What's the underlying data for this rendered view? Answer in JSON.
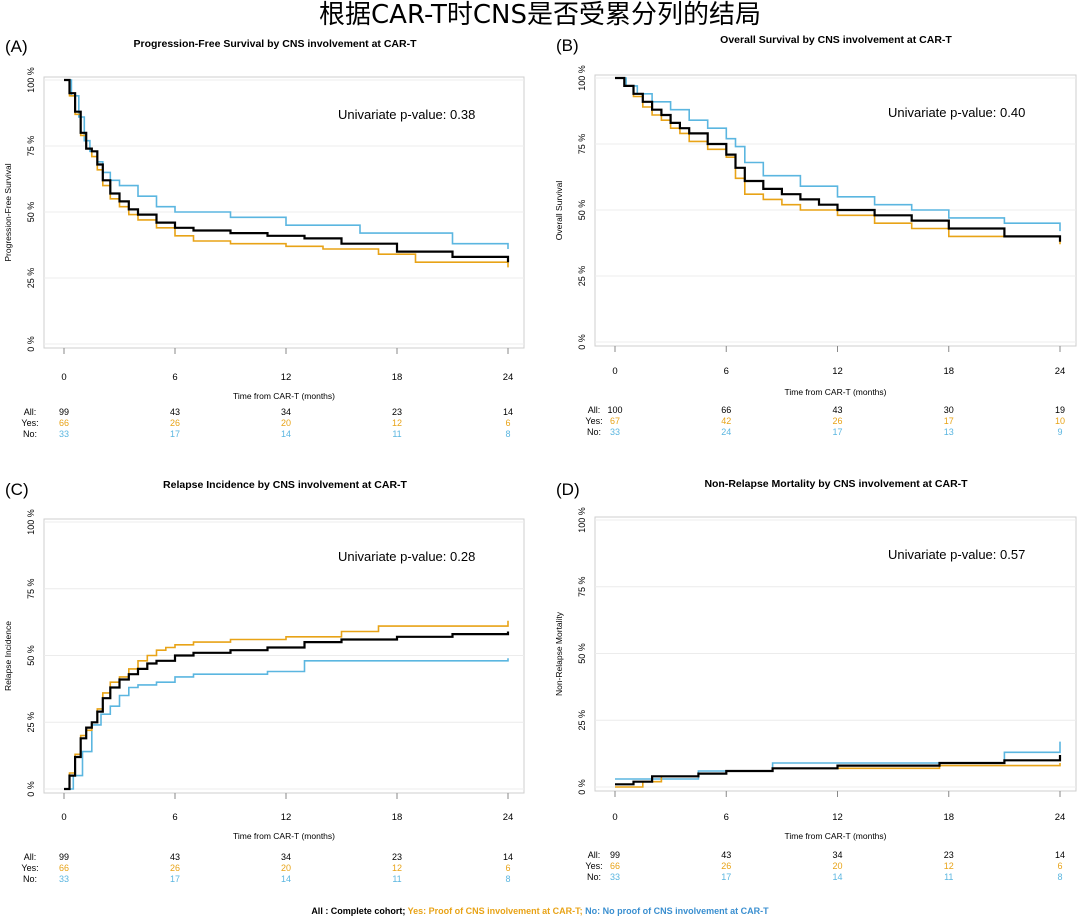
{
  "title": "根据CAR-T时CNS是否受累分列的结局",
  "colors": {
    "all": "#000000",
    "yes": "#e8a317",
    "no": "#5bb6e0"
  },
  "footer": {
    "all": "All : Complete cohort;",
    "yes": " Yes: Proof of CNS involvement at CAR-T;",
    "no": " No: No proof of CNS involvement at CAR-T"
  },
  "chart_data": [
    {
      "type": "line",
      "panel": "(A)",
      "title": "Progression-Free Survival by CNS involvement at CAR-T",
      "xlabel": "Time from CAR-T (months)",
      "ylabel": "Progression-Free Survival",
      "xlim": [
        0,
        24
      ],
      "ylim": [
        0,
        100
      ],
      "xticks": [
        "0",
        "6",
        "12",
        "18",
        "24"
      ],
      "yticks": [
        "0 %",
        "25 %",
        "50 %",
        "75 %",
        "100 %"
      ],
      "annotation": "Univariate p-value: 0.38",
      "series": [
        {
          "name": "All",
          "key": "all",
          "x": [
            0,
            0.3,
            0.6,
            0.9,
            1.2,
            1.5,
            1.8,
            2.1,
            2.5,
            3.0,
            3.5,
            4.0,
            5.0,
            6.0,
            7.0,
            9.0,
            11.0,
            13.0,
            15.0,
            18.0,
            21.0,
            24.0
          ],
          "y": [
            100,
            95,
            88,
            80,
            74,
            73,
            68,
            62,
            57,
            54,
            51,
            49,
            46,
            44,
            43,
            42,
            41,
            40,
            38,
            35,
            33,
            31
          ]
        },
        {
          "name": "Yes",
          "key": "yes",
          "x": [
            0,
            0.3,
            0.6,
            0.9,
            1.2,
            1.5,
            1.8,
            2.1,
            2.5,
            3.0,
            3.5,
            4.0,
            5.0,
            6.0,
            7.0,
            9.0,
            12.0,
            14.0,
            17.0,
            19.0,
            24.0
          ],
          "y": [
            100,
            94,
            87,
            79,
            74,
            71,
            66,
            60,
            55,
            52,
            49,
            47,
            44,
            41,
            39,
            38,
            37,
            36,
            34,
            31,
            29
          ]
        },
        {
          "name": "No",
          "key": "no",
          "x": [
            0,
            0.4,
            0.8,
            1.1,
            1.4,
            1.8,
            2.1,
            2.5,
            3.0,
            4.0,
            5.0,
            6.0,
            9.0,
            12.0,
            16.0,
            21.0,
            24.0
          ],
          "y": [
            100,
            94,
            86,
            77,
            73,
            69,
            65,
            62,
            60,
            56,
            52,
            50,
            48,
            45,
            42,
            38,
            36
          ]
        }
      ],
      "risk_table": {
        "times": [
          0,
          6,
          12,
          18,
          24
        ],
        "rows": [
          {
            "label": "All:",
            "key": "all",
            "values": [
              "99",
              "43",
              "34",
              "23",
              "14"
            ]
          },
          {
            "label": "Yes:",
            "key": "yes",
            "values": [
              "66",
              "26",
              "20",
              "12",
              "6"
            ]
          },
          {
            "label": "No:",
            "key": "no",
            "values": [
              "33",
              "17",
              "14",
              "11",
              "8"
            ]
          }
        ]
      }
    },
    {
      "type": "line",
      "panel": "(B)",
      "title": "Overall Survival by CNS involvement at CAR-T",
      "xlabel": "Time from CAR-T (months)",
      "ylabel": "Overall Survival",
      "xlim": [
        0,
        24
      ],
      "ylim": [
        0,
        100
      ],
      "xticks": [
        "0",
        "6",
        "12",
        "18",
        "24"
      ],
      "yticks": [
        "0 %",
        "25 %",
        "50 %",
        "75 %",
        "100 %"
      ],
      "annotation": "Univariate p-value: 0.40",
      "series": [
        {
          "name": "All",
          "key": "all",
          "x": [
            0,
            0.5,
            1.0,
            1.5,
            2.0,
            2.5,
            3.0,
            3.5,
            4.0,
            5.0,
            6.0,
            6.5,
            7.0,
            8.0,
            9.0,
            10.0,
            11.0,
            12.0,
            14.0,
            16.0,
            18.0,
            21.0,
            24.0
          ],
          "y": [
            100,
            97,
            94,
            91,
            88,
            86,
            83,
            81,
            79,
            75,
            71,
            66,
            61,
            58,
            56,
            54,
            52,
            50,
            48,
            46,
            43,
            40,
            38
          ]
        },
        {
          "name": "Yes",
          "key": "yes",
          "x": [
            0,
            0.5,
            1.0,
            1.5,
            2.0,
            2.5,
            3.0,
            3.5,
            4.0,
            5.0,
            6.0,
            6.5,
            7.0,
            8.0,
            9.0,
            10.0,
            12.0,
            14.0,
            16.0,
            18.0,
            24.0
          ],
          "y": [
            100,
            97,
            93,
            89,
            86,
            84,
            81,
            79,
            76,
            73,
            70,
            62,
            56,
            54,
            52,
            50,
            48,
            45,
            43,
            40,
            37
          ]
        },
        {
          "name": "No",
          "key": "no",
          "x": [
            0,
            0.6,
            1.2,
            2.0,
            3.0,
            4.0,
            5.0,
            6.0,
            6.5,
            7.0,
            8.0,
            10.0,
            12.0,
            14.0,
            16.0,
            18.0,
            21.0,
            24.0
          ],
          "y": [
            100,
            97,
            94,
            91,
            88,
            84,
            81,
            77,
            74,
            68,
            63,
            59,
            55,
            52,
            50,
            47,
            45,
            42
          ]
        }
      ],
      "risk_table": {
        "times": [
          0,
          6,
          12,
          18,
          24
        ],
        "rows": [
          {
            "label": "All:",
            "key": "all",
            "values": [
              "100",
              "66",
              "43",
              "30",
              "19"
            ]
          },
          {
            "label": "Yes:",
            "key": "yes",
            "values": [
              "67",
              "42",
              "26",
              "17",
              "10"
            ]
          },
          {
            "label": "No:",
            "key": "no",
            "values": [
              "33",
              "24",
              "17",
              "13",
              "9"
            ]
          }
        ]
      }
    },
    {
      "type": "line",
      "panel": "(C)",
      "title": "Relapse Incidence by CNS involvement at CAR-T",
      "xlabel": "Time from CAR-T (months)",
      "ylabel": "Relapse Incidence",
      "xlim": [
        0,
        24
      ],
      "ylim": [
        0,
        100
      ],
      "xticks": [
        "0",
        "6",
        "12",
        "18",
        "24"
      ],
      "yticks": [
        "0 %",
        "25 %",
        "50 %",
        "75 %",
        "100 %"
      ],
      "annotation": "Univariate p-value: 0.28",
      "series": [
        {
          "name": "All",
          "key": "all",
          "x": [
            0,
            0.3,
            0.6,
            0.9,
            1.2,
            1.5,
            1.8,
            2.1,
            2.5,
            3.0,
            3.5,
            4.0,
            4.5,
            5.0,
            6.0,
            7.0,
            9.0,
            11.0,
            13.0,
            15.0,
            18.0,
            21.0,
            24.0
          ],
          "y": [
            0,
            5,
            12,
            19,
            23,
            25,
            29,
            34,
            38,
            41,
            43,
            45,
            47,
            48,
            50,
            51,
            52,
            53,
            55,
            56,
            57,
            58,
            59
          ]
        },
        {
          "name": "Yes",
          "key": "yes",
          "x": [
            0,
            0.3,
            0.6,
            0.9,
            1.2,
            1.5,
            1.8,
            2.1,
            2.5,
            3.0,
            3.5,
            4.0,
            4.5,
            5.0,
            5.5,
            6.0,
            7.0,
            9.0,
            12.0,
            15.0,
            17.0,
            24.0
          ],
          "y": [
            0,
            6,
            13,
            20,
            22,
            25,
            30,
            36,
            40,
            42,
            45,
            48,
            50,
            52,
            53,
            54,
            55,
            56,
            57,
            59,
            61,
            63
          ]
        },
        {
          "name": "No",
          "key": "no",
          "x": [
            0,
            0.5,
            1.0,
            1.5,
            2.0,
            2.5,
            3.0,
            3.5,
            4.0,
            5.0,
            6.0,
            7.0,
            9.0,
            11.0,
            13.0,
            24.0
          ],
          "y": [
            0,
            5,
            14,
            24,
            28,
            31,
            35,
            38,
            39,
            40,
            42,
            43,
            43,
            44,
            48,
            49
          ]
        }
      ],
      "risk_table": {
        "times": [
          0,
          6,
          12,
          18,
          24
        ],
        "rows": [
          {
            "label": "All:",
            "key": "all",
            "values": [
              "99",
              "43",
              "34",
              "23",
              "14"
            ]
          },
          {
            "label": "Yes:",
            "key": "yes",
            "values": [
              "66",
              "26",
              "20",
              "12",
              "6"
            ]
          },
          {
            "label": "No:",
            "key": "no",
            "values": [
              "33",
              "17",
              "14",
              "11",
              "8"
            ]
          }
        ]
      }
    },
    {
      "type": "line",
      "panel": "(D)",
      "title": "Non-Relapse Mortality by CNS involvement at CAR-T",
      "xlabel": "Time from CAR-T (months)",
      "ylabel": "Non-Relapse Mortality",
      "xlim": [
        0,
        24
      ],
      "ylim": [
        0,
        100
      ],
      "xticks": [
        "0",
        "6",
        "12",
        "18",
        "24"
      ],
      "yticks": [
        "0 %",
        "25 %",
        "50 %",
        "75 %",
        "100 %"
      ],
      "annotation": "Univariate p-value: 0.57",
      "series": [
        {
          "name": "All",
          "key": "all",
          "x": [
            0,
            1.0,
            2.0,
            4.5,
            6.0,
            8.5,
            12.0,
            17.5,
            21.0,
            24.0
          ],
          "y": [
            1,
            2,
            4,
            5,
            6,
            7,
            8,
            9,
            10,
            12
          ]
        },
        {
          "name": "Yes",
          "key": "yes",
          "x": [
            0,
            1.5,
            2.5,
            4.5,
            6.0,
            8.5,
            12.0,
            17.5,
            24.0
          ],
          "y": [
            0,
            2,
            4,
            5,
            6,
            7,
            7,
            8,
            9
          ]
        },
        {
          "name": "No",
          "key": "no",
          "x": [
            0,
            2.5,
            4.5,
            6.0,
            8.5,
            12.0,
            18.0,
            21.0,
            24.0
          ],
          "y": [
            3,
            3,
            6,
            6,
            9,
            9,
            9,
            13,
            17
          ]
        }
      ],
      "risk_table": {
        "times": [
          0,
          6,
          12,
          18,
          24
        ],
        "rows": [
          {
            "label": "All:",
            "key": "all",
            "values": [
              "99",
              "43",
              "34",
              "23",
              "14"
            ]
          },
          {
            "label": "Yes:",
            "key": "yes",
            "values": [
              "66",
              "26",
              "20",
              "12",
              "6"
            ]
          },
          {
            "label": "No:",
            "key": "no",
            "values": [
              "33",
              "17",
              "14",
              "11",
              "8"
            ]
          }
        ]
      }
    }
  ]
}
